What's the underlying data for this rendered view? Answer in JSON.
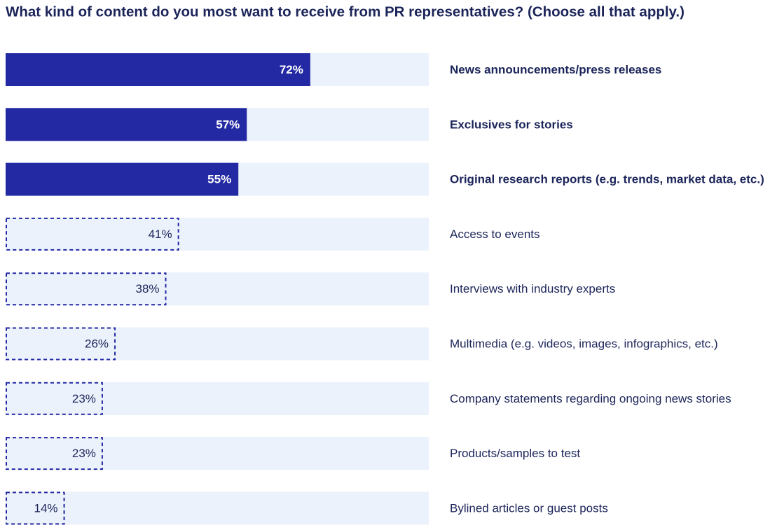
{
  "chart_data": {
    "type": "bar",
    "orientation": "horizontal",
    "title": "What kind of content do you most want to receive from PR representatives? (Choose all that apply.)",
    "categories": [
      "News announcements/press releases",
      "Exclusives for stories",
      "Original research reports (e.g. trends, market data, etc.)",
      "Access to events",
      "Interviews with industry experts",
      "Multimedia (e.g. videos, images, infographics, etc.)",
      "Company statements regarding ongoing news stories",
      "Products/samples to test",
      "Bylined articles or guest posts"
    ],
    "values": [
      72,
      57,
      55,
      41,
      38,
      26,
      23,
      23,
      14
    ],
    "value_labels": [
      "72%",
      "57%",
      "55%",
      "41%",
      "38%",
      "26%",
      "23%",
      "23%",
      "14%"
    ],
    "styles": [
      "solid",
      "solid",
      "solid",
      "dashed",
      "dashed",
      "dashed",
      "dashed",
      "dashed",
      "dashed"
    ],
    "color": "#2329a3",
    "track_color": "#ebf2fc",
    "xlim": [
      0,
      100
    ]
  }
}
